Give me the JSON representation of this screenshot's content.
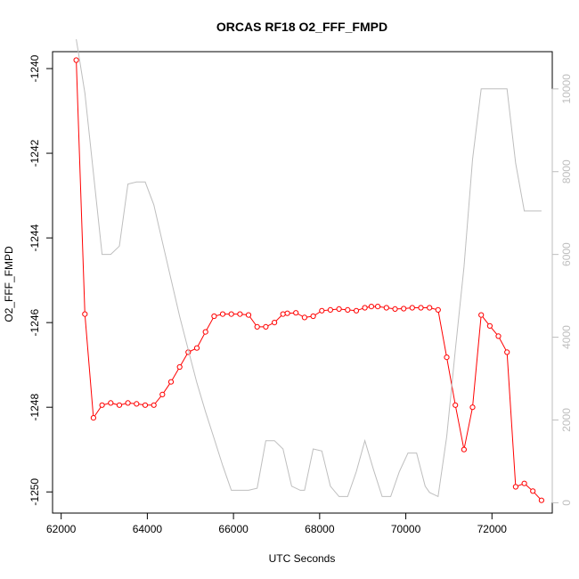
{
  "chart_data": {
    "type": "line",
    "title": "ORCAS RF18 O2_FFF_FMPD",
    "xlabel": "UTC Seconds",
    "ylabel": "O2_FFF_FMPD",
    "xlim": [
      61800,
      73400
    ],
    "ylim": [
      -1250.5,
      -1239.6
    ],
    "y2lim": [
      -250,
      10900
    ],
    "x_ticks": [
      62000,
      64000,
      66000,
      68000,
      70000,
      72000
    ],
    "x_tick_labels": [
      "62000",
      "64000",
      "66000",
      "68000",
      "70000",
      "72000"
    ],
    "y_ticks": [
      -1240,
      -1242,
      -1244,
      -1246,
      -1248,
      -1250
    ],
    "y_tick_labels": [
      "-1240",
      "-1242",
      "-1244",
      "-1246",
      "-1248",
      "-1250"
    ],
    "y2_ticks": [
      0,
      2000,
      4000,
      6000,
      8000,
      10000
    ],
    "y2_tick_labels": [
      "0",
      "2000",
      "4000",
      "6000",
      "8000",
      "10000"
    ],
    "grid": false,
    "series": [
      {
        "color": "#ff0000",
        "marker": "open-circle",
        "axis": "left",
        "x": [
          62350,
          62550,
          62750,
          62950,
          63150,
          63350,
          63550,
          63750,
          63950,
          64150,
          64350,
          64550,
          64750,
          64950,
          65150,
          65350,
          65550,
          65750,
          65950,
          66150,
          66350,
          66550,
          66750,
          66950,
          67150,
          67250,
          67450,
          67650,
          67850,
          68050,
          68250,
          68450,
          68650,
          68850,
          69050,
          69200,
          69350,
          69550,
          69750,
          69950,
          70150,
          70350,
          70550,
          70750,
          70950,
          71150,
          71350,
          71550,
          71750,
          71950,
          72150,
          72350,
          72550,
          72750,
          72950,
          73150
        ],
        "values": [
          -1239.8,
          -1245.8,
          -1248.25,
          -1247.95,
          -1247.9,
          -1247.95,
          -1247.9,
          -1247.92,
          -1247.95,
          -1247.95,
          -1247.7,
          -1247.4,
          -1247.05,
          -1246.7,
          -1246.6,
          -1246.22,
          -1245.85,
          -1245.8,
          -1245.8,
          -1245.8,
          -1245.82,
          -1246.1,
          -1246.1,
          -1246.0,
          -1245.8,
          -1245.78,
          -1245.77,
          -1245.88,
          -1245.85,
          -1245.72,
          -1245.7,
          -1245.68,
          -1245.7,
          -1245.72,
          -1245.65,
          -1245.62,
          -1245.62,
          -1245.65,
          -1245.68,
          -1245.67,
          -1245.65,
          -1245.65,
          -1245.65,
          -1245.7,
          -1246.82,
          -1247.95,
          -1249.0,
          -1248.0,
          -1245.82,
          -1246.08,
          -1246.32,
          -1246.7,
          -1249.88,
          -1249.8,
          -1249.98,
          -1250.2
        ]
      },
      {
        "color": "#bebebe",
        "marker": "none",
        "axis": "right",
        "x": [
          62350,
          62550,
          62950,
          63150,
          63350,
          63550,
          63750,
          63950,
          64150,
          64350,
          64550,
          64750,
          64950,
          65150,
          65350,
          65550,
          65750,
          65950,
          66150,
          66350,
          66550,
          66750,
          66950,
          67150,
          67350,
          67550,
          67650,
          67850,
          68050,
          68250,
          68450,
          68650,
          68850,
          69050,
          69250,
          69450,
          69650,
          69850,
          70050,
          70250,
          70450,
          70550,
          70750,
          70950,
          71150,
          71350,
          71550,
          71750,
          71950,
          72150,
          72350,
          72550,
          72750,
          72950,
          73150
        ],
        "values": [
          11200,
          9900,
          6000,
          6000,
          6200,
          7700,
          7750,
          7750,
          7200,
          6300,
          5400,
          4500,
          3700,
          2900,
          2200,
          1550,
          900,
          300,
          300,
          300,
          350,
          1500,
          1500,
          1300,
          400,
          300,
          300,
          1300,
          1250,
          400,
          150,
          150,
          750,
          1500,
          800,
          150,
          150,
          750,
          1200,
          1200,
          400,
          250,
          150,
          1600,
          3700,
          5700,
          8300,
          10000,
          10000,
          10000,
          10000,
          8200,
          7050,
          7050,
          7050
        ]
      }
    ]
  }
}
